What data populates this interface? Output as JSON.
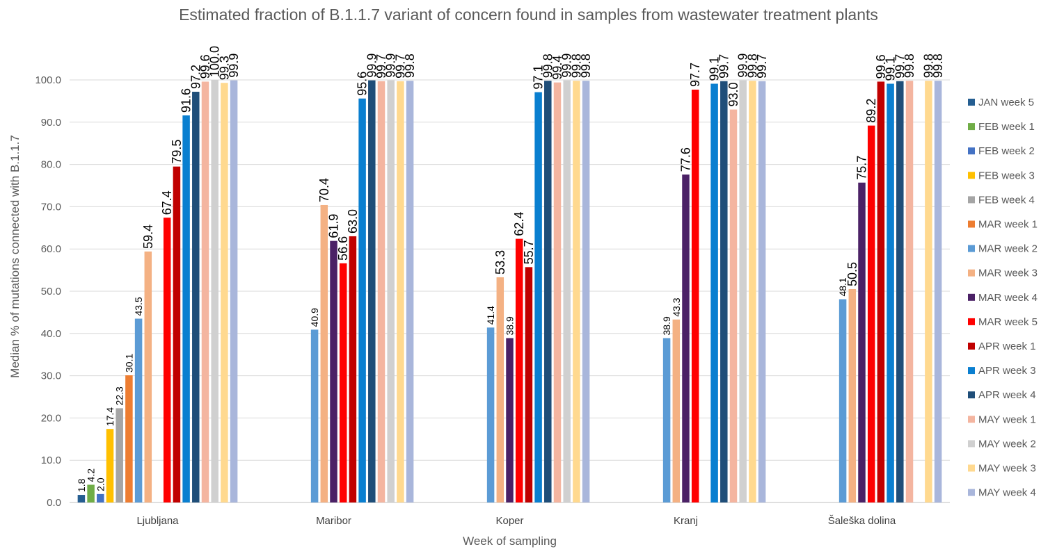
{
  "chart_data": {
    "type": "bar",
    "title": "Estimated fraction of B.1.1.7 variant of concern found in samples from wastewater treatment plants",
    "xlabel": "Week of sampling",
    "ylabel": "Median % of mutations connected with B.1.1.7",
    "ylim": [
      0,
      100
    ],
    "yticks": [
      "0.0",
      "10.0",
      "20.0",
      "30.0",
      "40.0",
      "50.0",
      "60.0",
      "70.0",
      "80.0",
      "90.0",
      "100.0"
    ],
    "grid": true,
    "legend_position": "right",
    "categories": [
      "Ljubljana",
      "Maribor",
      "Koper",
      "Kranj",
      "Šaleška dolina"
    ],
    "series": [
      {
        "name": "JAN week 5",
        "color": "#255E91",
        "values": [
          1.8,
          null,
          null,
          null,
          null
        ],
        "labels": [
          "1.8",
          null,
          null,
          null,
          null
        ]
      },
      {
        "name": "FEB week 1",
        "color": "#70AD47",
        "values": [
          4.2,
          null,
          null,
          null,
          null
        ],
        "labels": [
          "4.2",
          null,
          null,
          null,
          null
        ]
      },
      {
        "name": "FEB week 2",
        "color": "#4472C4",
        "values": [
          2.0,
          null,
          null,
          null,
          null
        ],
        "labels": [
          "2.0",
          null,
          null,
          null,
          null
        ]
      },
      {
        "name": "FEB week 3",
        "color": "#FFC000",
        "values": [
          17.4,
          null,
          null,
          null,
          null
        ],
        "labels": [
          "17.4",
          null,
          null,
          null,
          null
        ]
      },
      {
        "name": "FEB week 4",
        "color": "#A5A5A5",
        "values": [
          22.3,
          null,
          null,
          null,
          null
        ],
        "labels": [
          "22.3",
          null,
          null,
          null,
          null
        ]
      },
      {
        "name": "MAR week 1",
        "color": "#ED7D31",
        "values": [
          30.1,
          null,
          null,
          null,
          null
        ],
        "labels": [
          "30.1",
          null,
          null,
          null,
          null
        ]
      },
      {
        "name": "MAR week 2",
        "color": "#5B9BD5",
        "values": [
          43.5,
          40.9,
          41.4,
          38.9,
          48.1
        ],
        "labels": [
          "43.5",
          "40.9",
          "41.4",
          "38.9",
          "48.1"
        ]
      },
      {
        "name": "MAR week 3",
        "color": "#F4B183",
        "values": [
          59.4,
          70.4,
          53.3,
          43.3,
          50.5
        ],
        "labels": [
          "59.4",
          "70.4",
          "53.3",
          "43.3",
          "50.5"
        ]
      },
      {
        "name": "MAR week 4",
        "color": "#4B2166",
        "values": [
          null,
          61.9,
          38.9,
          77.6,
          75.7
        ],
        "labels": [
          null,
          "61.9",
          "38.9",
          "77.6",
          "75.7"
        ]
      },
      {
        "name": "MAR week 5",
        "color": "#FF0000",
        "values": [
          67.4,
          56.6,
          62.4,
          97.7,
          89.2
        ],
        "labels": [
          "67.4",
          "56.6",
          "62.4",
          "97.7",
          "89.2"
        ]
      },
      {
        "name": "APR week 1",
        "color": "#C00000",
        "values": [
          79.5,
          63.0,
          55.7,
          null,
          99.6
        ],
        "labels": [
          "79.5",
          "63.0",
          "55.7",
          null,
          "99.6"
        ]
      },
      {
        "name": "APR week 3",
        "color": "#0A7FD0",
        "values": [
          91.6,
          95.6,
          97.1,
          99.1,
          99.1
        ],
        "labels": [
          "91.6",
          "95.6",
          "97.1",
          "99.1",
          "99.1"
        ]
      },
      {
        "name": "APR week 4",
        "color": "#1F4E79",
        "values": [
          97.2,
          99.9,
          99.8,
          99.7,
          99.7
        ],
        "labels": [
          "97.2",
          "99.9",
          "99.8",
          "99.7",
          "99.7"
        ]
      },
      {
        "name": "MAY week 1",
        "color": "#F4B5A0",
        "values": [
          99.6,
          99.7,
          99.4,
          93.0,
          99.8
        ],
        "labels": [
          "99.6",
          "99.7",
          "99.4",
          "93.0",
          "99.8"
        ]
      },
      {
        "name": "MAY week 2",
        "color": "#D0D0D0",
        "values": [
          100.0,
          99.9,
          99.9,
          99.9,
          null
        ],
        "labels": [
          "100.0",
          "99.9",
          "99.9",
          "99.9",
          null
        ]
      },
      {
        "name": "MAY week 3",
        "color": "#FFD98F",
        "values": [
          99.3,
          99.7,
          99.8,
          99.8,
          99.8
        ],
        "labels": [
          "99.3",
          "99.7",
          "99.8",
          "99.8",
          "99.8"
        ]
      },
      {
        "name": "MAY week 4",
        "color": "#A9B6DB",
        "values": [
          99.9,
          99.8,
          99.8,
          99.7,
          99.8
        ],
        "labels": [
          "99.9",
          "99.8",
          "99.8",
          "99.7",
          "99.8"
        ]
      }
    ]
  }
}
